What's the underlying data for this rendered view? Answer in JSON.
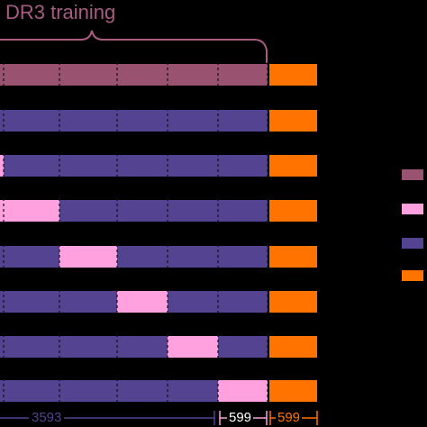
{
  "title": "DR3 training",
  "colors": {
    "dr3": "#9a5271",
    "train": "#534391",
    "val": "#ffa0df",
    "test": "#ff7400",
    "brace": "#a85c80"
  },
  "rows": [
    [
      "dr3",
      "dr3",
      "dr3",
      "dr3",
      "dr3",
      "test"
    ],
    [
      "train",
      "train",
      "train",
      "train",
      "train",
      "test"
    ],
    [
      "val",
      "train",
      "train",
      "train",
      "train",
      "test"
    ],
    [
      "val",
      "train",
      "train",
      "train",
      "train",
      "test"
    ],
    [
      "train",
      "val",
      "train",
      "train",
      "train",
      "test"
    ],
    [
      "train",
      "train",
      "val",
      "train",
      "train",
      "test"
    ],
    [
      "train",
      "train",
      "train",
      "val",
      "train",
      "test"
    ],
    [
      "train",
      "train",
      "train",
      "train",
      "val",
      "test"
    ]
  ],
  "legend": [
    "dr3",
    "val",
    "train",
    "test"
  ],
  "lengths": {
    "train": "3593",
    "val": "599",
    "test": "599"
  }
}
